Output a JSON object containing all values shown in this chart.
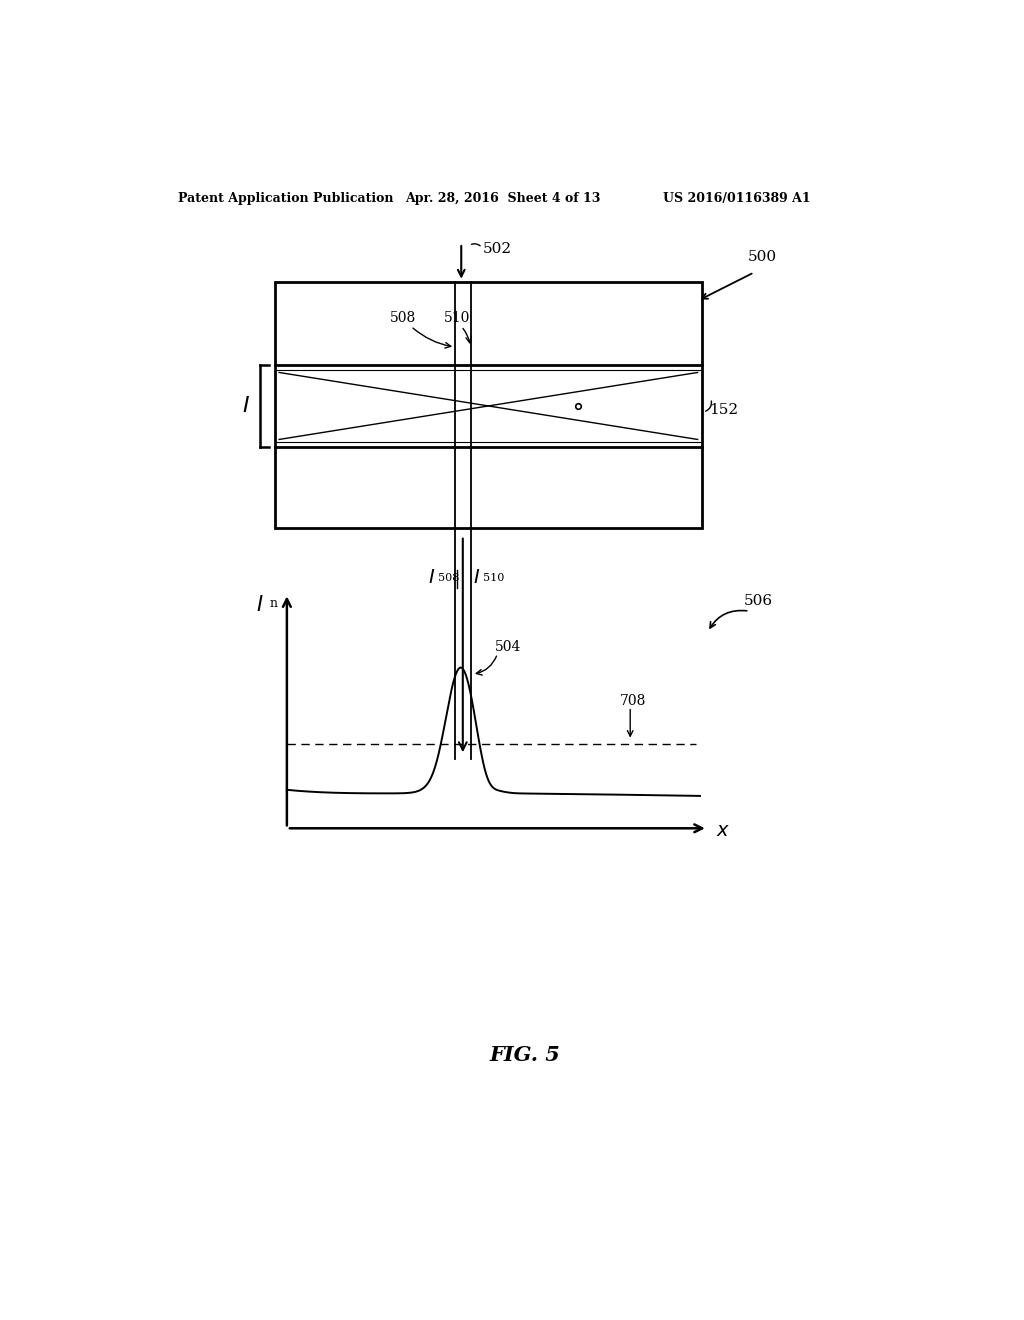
{
  "bg_color": "#ffffff",
  "line_color": "#000000",
  "header_left": "Patent Application Publication",
  "header_mid": "Apr. 28, 2016  Sheet 4 of 13",
  "header_right": "US 2016/0116389 A1",
  "fig_label": "FIG. 5",
  "label_500": "500",
  "label_502": "502",
  "label_508": "508",
  "label_510": "510",
  "label_152": "152",
  "label_I": "I",
  "label_506": "506",
  "label_504": "504",
  "label_708": "708"
}
